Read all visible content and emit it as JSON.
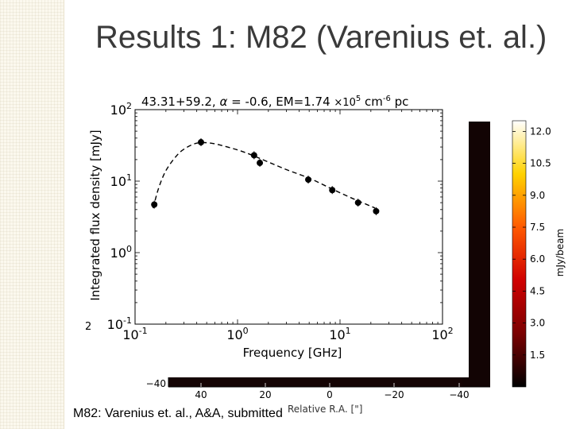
{
  "slide": {
    "title": "Results 1: M82 (Varenius et. al.)",
    "caption": "M82: Varenius et. al., A&A, submitted"
  },
  "chart_data": [
    {
      "type": "scatter",
      "title": "43.31+59.2, α = -0.6, EM=1.74 ×10⁵ cm⁻⁶ pc",
      "title_parts": {
        "prefix": "43.31+59.2, ",
        "alpha_symbol": "α",
        "alpha_rest": " = -0.6, EM=1.74 ",
        "times": "×10",
        "exp": "5",
        "unit": " cm",
        "unit_exp": "-6",
        "tail": " pc"
      },
      "xlabel": "Frequency [GHz]",
      "ylabel": "Integrated flux density [mJy]",
      "xscale": "log",
      "yscale": "log",
      "xlim": [
        0.1,
        100
      ],
      "ylim": [
        0.1,
        100
      ],
      "xtick_values": [
        0.1,
        1,
        10,
        100
      ],
      "ytick_values": [
        0.1,
        1,
        10,
        100
      ],
      "xtick_labels": [
        {
          "base": "10",
          "exp": "-1"
        },
        {
          "base": "10",
          "exp": "0"
        },
        {
          "base": "10",
          "exp": "1"
        },
        {
          "base": "10",
          "exp": "2"
        }
      ],
      "ytick_labels": [
        {
          "base": "10",
          "exp": "-1"
        },
        {
          "base": "10",
          "exp": "0"
        },
        {
          "base": "10",
          "exp": "1"
        },
        {
          "base": "10",
          "exp": "2"
        }
      ],
      "points": [
        {
          "x": 0.154,
          "y": 4.7
        },
        {
          "x": 0.44,
          "y": 35
        },
        {
          "x": 1.45,
          "y": 23
        },
        {
          "x": 1.65,
          "y": 18
        },
        {
          "x": 4.9,
          "y": 10.5
        },
        {
          "x": 8.4,
          "y": 7.5
        },
        {
          "x": 15,
          "y": 5.0
        },
        {
          "x": 22.5,
          "y": 3.8
        }
      ],
      "model_curve": [
        {
          "x": 0.15,
          "y": 4.2
        },
        {
          "x": 0.17,
          "y": 8
        },
        {
          "x": 0.2,
          "y": 14
        },
        {
          "x": 0.25,
          "y": 22
        },
        {
          "x": 0.3,
          "y": 28
        },
        {
          "x": 0.4,
          "y": 34
        },
        {
          "x": 0.55,
          "y": 34
        },
        {
          "x": 0.8,
          "y": 30
        },
        {
          "x": 1.2,
          "y": 25
        },
        {
          "x": 2,
          "y": 18.5
        },
        {
          "x": 3,
          "y": 14.5
        },
        {
          "x": 5,
          "y": 11
        },
        {
          "x": 8,
          "y": 8
        },
        {
          "x": 12,
          "y": 6.1
        },
        {
          "x": 16,
          "y": 5.1
        },
        {
          "x": 22,
          "y": 4.2
        }
      ],
      "grid": false,
      "colors": {
        "points": "#000000",
        "curve": "#000000",
        "axes": "#000000"
      }
    },
    {
      "type": "heatmap",
      "xlabel": "Relative R.A. [\"]",
      "colorbar_label": "mJy/beam",
      "colorbar_ticks": [
        "12.0",
        "10.5",
        "9.0",
        "7.5",
        "6.0",
        "4.5",
        "3.0",
        "1.5"
      ],
      "colorbar_range": [
        0,
        12.5
      ],
      "x_tick_labels": [
        "40",
        "20",
        "0",
        "−20",
        "−40"
      ],
      "y_tick_labels": [
        "−40"
      ],
      "partial_tick_label": "2",
      "colors": {
        "background": "#1a0606",
        "blob": "#3a140f",
        "colorbar_stops": [
          "#000000",
          "#7a0000",
          "#d00000",
          "#ff5a00",
          "#ffd200",
          "#ffffff"
        ]
      }
    }
  ]
}
